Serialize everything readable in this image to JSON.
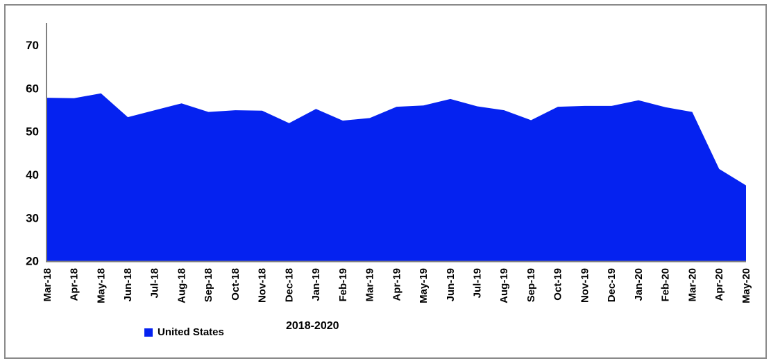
{
  "chart_data": {
    "type": "area",
    "footnote": "2018-2020",
    "categories": [
      "Mar-18",
      "Apr-18",
      "May-18",
      "Jun-18",
      "Jul-18",
      "Aug-18",
      "Sep-18",
      "Oct-18",
      "Nov-18",
      "Dec-18",
      "Jan-19",
      "Feb-19",
      "Mar-19",
      "Apr-19",
      "May-19",
      "Jun-19",
      "Jul-19",
      "Aug-19",
      "Sep-19",
      "Oct-19",
      "Nov-19",
      "Dec-19",
      "Jan-20",
      "Feb-20",
      "Mar-20",
      "Apr-20",
      "May-20"
    ],
    "series": [
      {
        "name": "United States",
        "color": "#0522F0",
        "values": [
          57.8,
          57.7,
          58.8,
          53.3,
          54.9,
          56.5,
          54.5,
          54.9,
          54.8,
          51.9,
          55.2,
          52.5,
          53.1,
          55.7,
          56.0,
          57.5,
          55.8,
          54.9,
          52.6,
          55.7,
          55.9,
          55.9,
          57.2,
          55.6,
          54.5,
          41.3,
          37.5
        ]
      }
    ],
    "ylim": [
      20,
      75
    ],
    "yticks": [
      20,
      30,
      40,
      50,
      60,
      70
    ],
    "xlabel_rotation": -90,
    "legend_position": "bottom-left",
    "grid": "off",
    "axis_color": "#808080",
    "text_color": "#000000",
    "frame_color": "#8a8a8a",
    "background": "#ffffff"
  }
}
